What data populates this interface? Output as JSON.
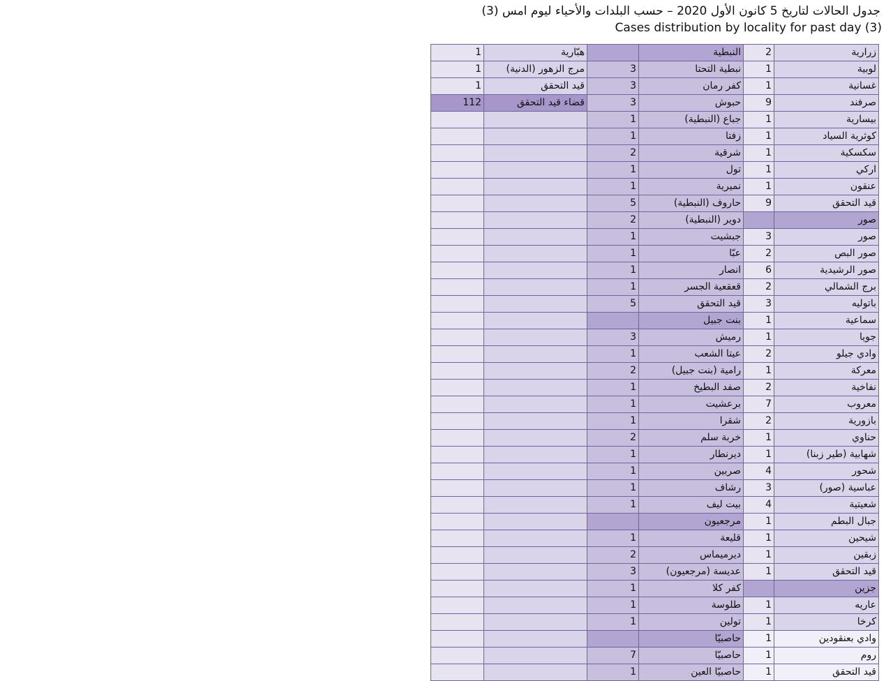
{
  "header": {
    "title_ar": "جدول الحالات لتاريخ  5 كانون الأول 2020 – حسب البلدات والأحياء ليوم امس (3)",
    "title_en": "Cases distribution by locality for past day (3)"
  },
  "colors": {
    "border": "#6f63a0",
    "header_cell": "#a796c9",
    "cell_light": "#e7e3f1",
    "cell_mid": "#c8bfdf"
  },
  "rows": [
    [
      "1",
      "هبّارية",
      "",
      "النبطية",
      "2",
      "زرارية"
    ],
    [
      "1",
      "مرج الزهور (الدنية)",
      "3",
      "نبطية التحتا",
      "1",
      "لوبية"
    ],
    [
      "1",
      "قيد التحقق",
      "3",
      "كفر رمان",
      "1",
      "غسانية"
    ],
    [
      "112",
      "قضاء قيد التحقق",
      "3",
      "حبوش",
      "9",
      "صرفند"
    ],
    [
      "",
      "",
      "1",
      "جباع (النبطية)",
      "1",
      "بيسارية"
    ],
    [
      "",
      "",
      "1",
      "زفتا",
      "1",
      "كوثرية السياد"
    ],
    [
      "",
      "",
      "2",
      "شرقية",
      "1",
      "سكسكية"
    ],
    [
      "",
      "",
      "1",
      "تول",
      "1",
      "اركي"
    ],
    [
      "",
      "",
      "1",
      "نميرية",
      "1",
      "عنقون"
    ],
    [
      "",
      "",
      "5",
      "حاروف (النبطية)",
      "9",
      "قيد التحقق"
    ],
    [
      "",
      "",
      "2",
      "دوير (النبطية)",
      "",
      "صور"
    ],
    [
      "",
      "",
      "1",
      "جبشيت",
      "3",
      "صور"
    ],
    [
      "",
      "",
      "1",
      "عبّا",
      "2",
      "صور البص"
    ],
    [
      "",
      "",
      "1",
      "انصار",
      "6",
      "صور الرشيدية"
    ],
    [
      "",
      "",
      "1",
      "قعقعية الجسر",
      "2",
      "برج الشمالي"
    ],
    [
      "",
      "",
      "5",
      "قيد التحقق",
      "3",
      "باتوليه"
    ],
    [
      "",
      "",
      "",
      "بنت جبيل",
      "1",
      "سماعية"
    ],
    [
      "",
      "",
      "3",
      "رميش",
      "1",
      "جويا"
    ],
    [
      "",
      "",
      "1",
      "عيتا الشعب",
      "2",
      "وادي جيلو"
    ],
    [
      "",
      "",
      "2",
      "رامية (بنت جبيل)",
      "1",
      "معركة"
    ],
    [
      "",
      "",
      "1",
      "صفد البطيخ",
      "2",
      "نفاخية"
    ],
    [
      "",
      "",
      "1",
      "برعشيت",
      "7",
      "معروب"
    ],
    [
      "",
      "",
      "1",
      "شقرا",
      "2",
      "بازورية"
    ],
    [
      "",
      "",
      "2",
      "خربة سلم",
      "1",
      "حناوي"
    ],
    [
      "",
      "",
      "1",
      "ديرنطار",
      "1",
      "شهابية (طير زبنا)"
    ],
    [
      "",
      "",
      "1",
      "صربين",
      "4",
      "شحور"
    ],
    [
      "",
      "",
      "1",
      "رشاف",
      "3",
      "عباسية (صور)"
    ],
    [
      "",
      "",
      "1",
      "بيت ليف",
      "4",
      "شعيتية"
    ],
    [
      "",
      "",
      "",
      "مرجعيون",
      "1",
      "جبال البطم"
    ],
    [
      "",
      "",
      "1",
      "قليعة",
      "1",
      "شيحين"
    ],
    [
      "",
      "",
      "2",
      "ديرميماس",
      "1",
      "زبقين"
    ],
    [
      "",
      "",
      "3",
      "عديسة (مرجعيون)",
      "1",
      "قيد التحقق"
    ],
    [
      "",
      "",
      "1",
      "كفر كلا",
      "",
      "جزين"
    ],
    [
      "",
      "",
      "1",
      "طلوسة",
      "1",
      "عاريه"
    ],
    [
      "",
      "",
      "1",
      "تولين",
      "1",
      "كرخا"
    ],
    [
      "",
      "",
      "",
      "حاصبيّا",
      "1",
      "وادي بعنقودين"
    ],
    [
      "",
      "",
      "7",
      "حاصبيّا",
      "1",
      "روم"
    ],
    [
      "",
      "",
      "1",
      "حاصبيّا العين",
      "1",
      "قيد التحقق"
    ]
  ]
}
